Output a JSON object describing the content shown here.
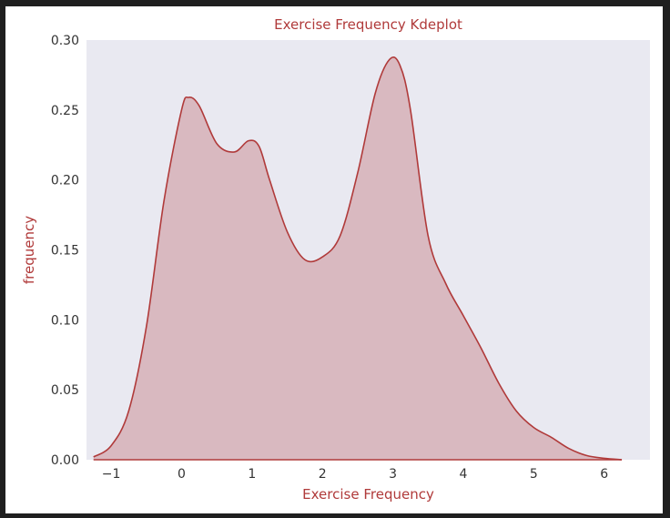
{
  "chart_data": {
    "type": "area",
    "title": "Exercise Frequency Kdeplot",
    "xlabel": "Exercise Frequency",
    "ylabel": "frequency",
    "xlim": [
      -1.35,
      6.65
    ],
    "ylim": [
      0,
      0.3
    ],
    "xticks": [
      "−1",
      "0",
      "1",
      "2",
      "3",
      "4",
      "5",
      "6"
    ],
    "xtick_values": [
      -1,
      0,
      1,
      2,
      3,
      4,
      5,
      6
    ],
    "yticks": [
      "0.00",
      "0.05",
      "0.10",
      "0.15",
      "0.20",
      "0.25",
      "0.30"
    ],
    "ytick_values": [
      0,
      0.05,
      0.1,
      0.15,
      0.2,
      0.25,
      0.3
    ],
    "grid": false,
    "series": [
      {
        "x": [
          -1.25,
          -1.0,
          -0.75,
          -0.5,
          -0.25,
          0.0,
          0.1,
          0.25,
          0.5,
          0.75,
          0.95,
          1.1,
          1.25,
          1.5,
          1.75,
          2.0,
          2.25,
          2.5,
          2.75,
          2.95,
          3.1,
          3.25,
          3.5,
          3.75,
          4.0,
          4.25,
          4.5,
          4.75,
          5.0,
          5.25,
          5.5,
          5.75,
          6.0,
          6.25
        ],
        "values": [
          0.002,
          0.01,
          0.035,
          0.095,
          0.185,
          0.25,
          0.259,
          0.253,
          0.226,
          0.22,
          0.228,
          0.224,
          0.2,
          0.163,
          0.143,
          0.145,
          0.16,
          0.205,
          0.262,
          0.286,
          0.282,
          0.25,
          0.16,
          0.126,
          0.103,
          0.08,
          0.055,
          0.035,
          0.023,
          0.016,
          0.008,
          0.003,
          0.001,
          0.0
        ]
      }
    ],
    "colors": {
      "line": "#b03a3a",
      "fill": "#d9b9c0",
      "plot_bg": "#e9e9f1",
      "title": "#b03a3a",
      "frame_bg": "#ffffff",
      "outer_bg": "#1f1f1f"
    }
  }
}
